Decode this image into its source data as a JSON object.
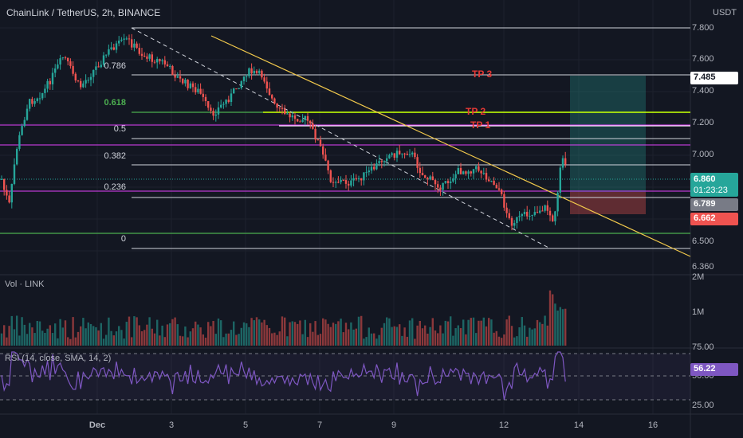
{
  "header": {
    "title": "ChainLink / TetherUS, 2h, BINANCE",
    "currency": "USDT"
  },
  "price_axis": {
    "ticks": [
      "7.800",
      "7.600",
      "7.400",
      "7.200",
      "7.000",
      "6.500",
      "6.360"
    ]
  },
  "price_tags": {
    "target": "7.485",
    "last_price": "6.860",
    "countdown": "01:23:23",
    "entry": "6.789",
    "stop": "6.662"
  },
  "fib_levels": {
    "l0786": "0.786",
    "l0618": "0.618",
    "l05": "0.5",
    "l0382": "0.382",
    "l0236": "0.236",
    "l0": "0"
  },
  "targets": {
    "tp1": "TP 1",
    "tp2": "TP 2",
    "tp3": "TP 3"
  },
  "volume_pane": {
    "label": "Vol · LINK",
    "ticks": [
      "2M",
      "1M"
    ]
  },
  "rsi_pane": {
    "label": "RSI (14, close, SMA, 14, 2)",
    "value": "56.22",
    "ticks": [
      "75.00",
      "50.00",
      "25.00"
    ]
  },
  "x_axis": {
    "ticks": [
      "Dec",
      "3",
      "5",
      "7",
      "9",
      "12",
      "14",
      "16"
    ]
  },
  "colors": {
    "background": "#131722",
    "up": "#26a69a",
    "down": "#ef5350",
    "rsi": "#7e57c2",
    "trendline": "#f2c94c",
    "magenta": "#e040fb",
    "green_level": "#4caf50"
  }
}
